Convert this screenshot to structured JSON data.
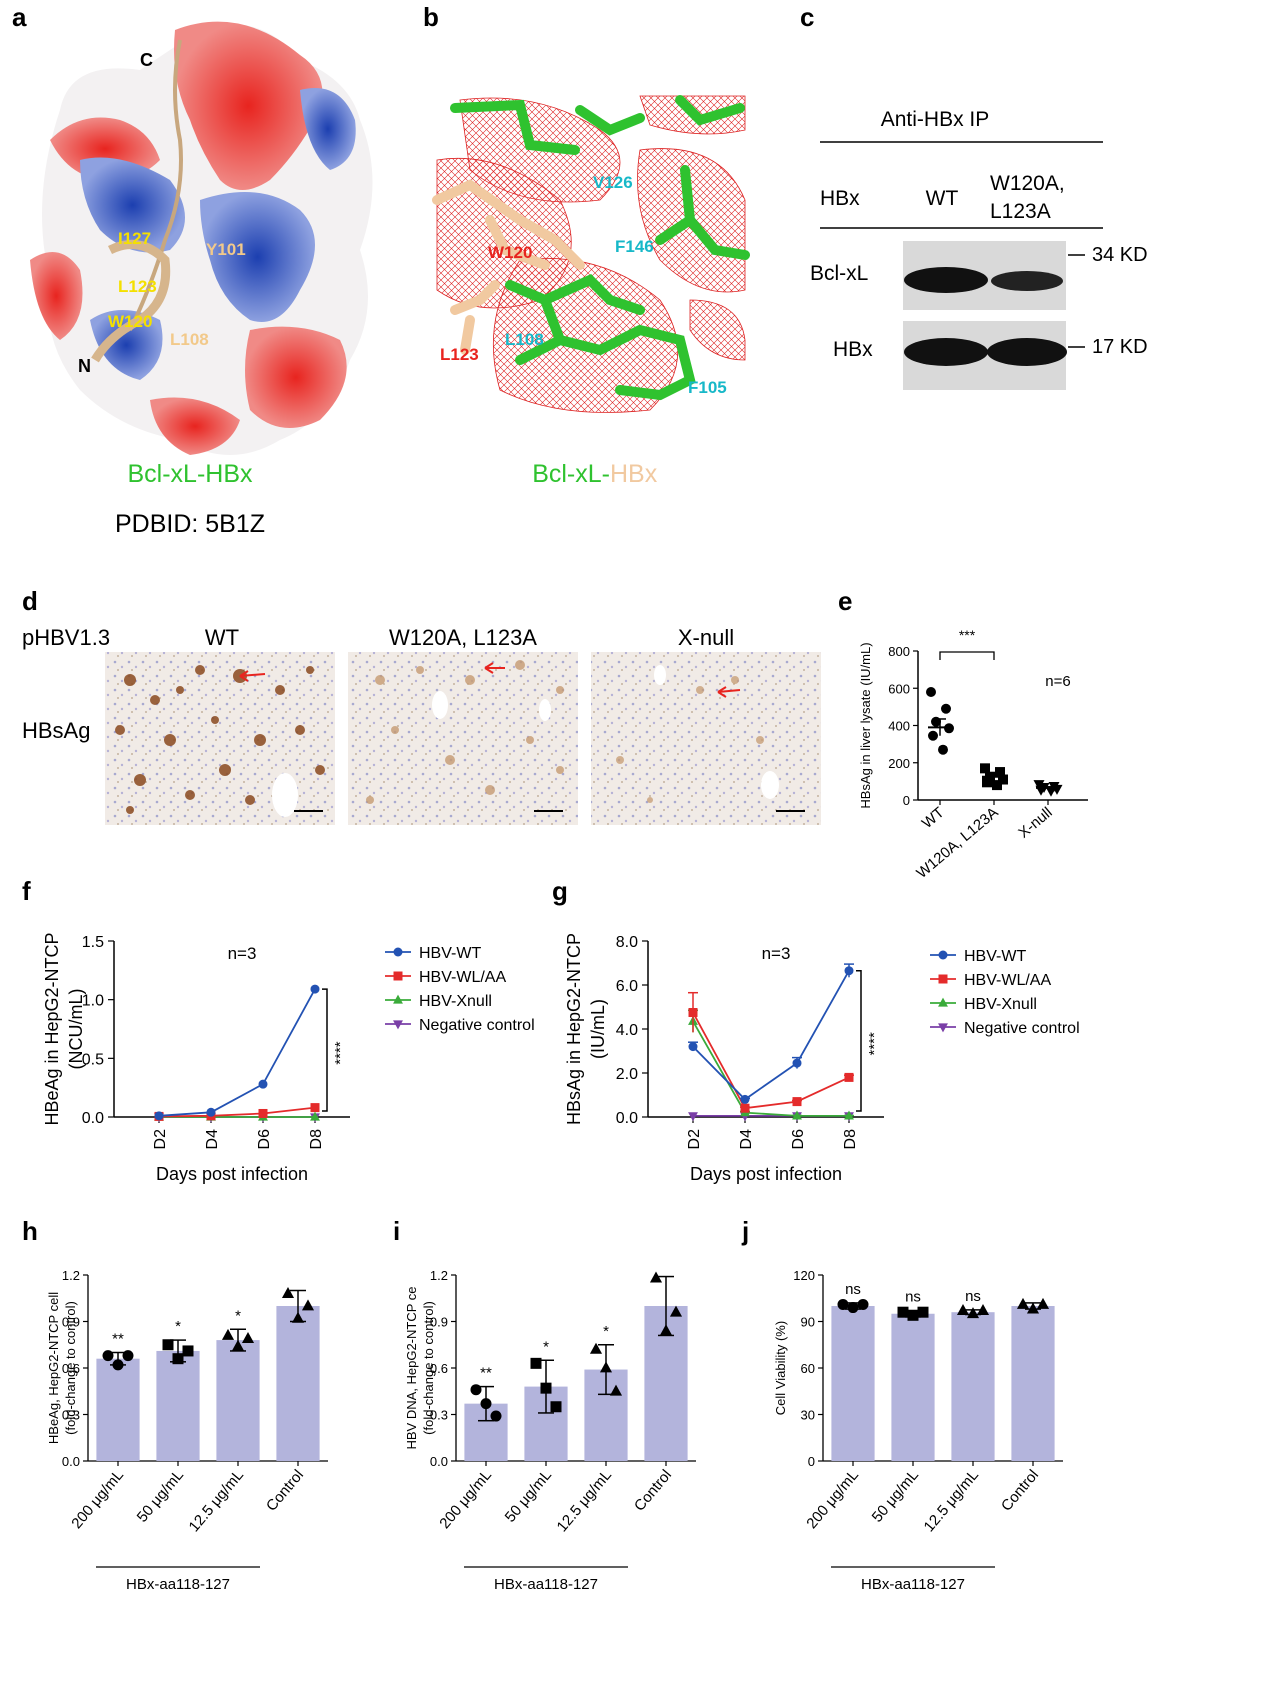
{
  "colors": {
    "green": "#2fc22f",
    "peach": "#f1c9a0",
    "red": "#e8241f",
    "blue": "#1f4fb5",
    "bar": "#b3b4dc",
    "wt": "#2352b3",
    "wlaa": "#e42b2b",
    "xnull": "#3aab3a",
    "neg": "#7a3fa7",
    "cyan": "#17b8c8",
    "yellow": "#f4e000"
  },
  "panel_a": {
    "letter": "a",
    "title_part1": "Bcl-xL-HBx",
    "pdb": "PDBID: 5B1Z",
    "labels": {
      "c_term": "C",
      "n_term": "N",
      "i127": "I127",
      "y101": "Y101",
      "l123": "L123",
      "w120": "W120",
      "l108": "L108"
    }
  },
  "panel_b": {
    "letter": "b",
    "title_part1": "Bcl-xL-",
    "title_part2": "HBx",
    "labels": {
      "v126": "V126",
      "w120": "W120",
      "f146": "F146",
      "l123": "L123",
      "l108": "L108",
      "f105": "F105"
    }
  },
  "panel_c": {
    "letter": "c",
    "header": "Anti-HBx IP",
    "row_hbx": "HBx",
    "col_wt": "WT",
    "col_mut_line1": "W120A,",
    "col_mut_line2": "L123A",
    "blot1": "Bcl-xL",
    "blot2": "HBx",
    "mw1": "34 KD",
    "mw2": "17 KD"
  },
  "panel_d": {
    "letter": "d",
    "row_label": "pHBV1.3",
    "stain": "HBsAg",
    "cols": [
      "WT",
      "W120A, L123A",
      "X-null"
    ]
  },
  "panel_f_title": "f",
  "panel_g_title": "g",
  "panel_h_title": "h",
  "panel_i_title": "i",
  "panel_j_title": "j",
  "panel_e_title": "e",
  "chart_data": [
    {
      "id": "e",
      "type": "scatter",
      "categories": [
        "WT",
        "W120A, L123A",
        "X-null"
      ],
      "ylabel": "HBsAg in liver lysate (IU/mL)",
      "ylim": [
        0,
        800
      ],
      "yticks": [
        0,
        200,
        400,
        600,
        800
      ],
      "annotation": "n=6",
      "significance": "***",
      "points": [
        [
          580,
          490,
          420,
          385,
          345,
          270
        ],
        [
          170,
          150,
          125,
          110,
          95,
          80
        ],
        [
          85,
          75,
          70,
          60,
          55,
          50
        ]
      ],
      "means": [
        390,
        125,
        65
      ],
      "sem": [
        45,
        15,
        6
      ]
    },
    {
      "id": "f",
      "type": "line",
      "x": [
        "D2",
        "D4",
        "D6",
        "D8"
      ],
      "xlabel": "Days post infection",
      "ylabel_line1": "HBeAg in HepG2-NTCP",
      "ylabel_line2": "(NCU/mL)",
      "ylim": [
        0,
        1.5
      ],
      "yticks": [
        "0.0",
        "0.5",
        "1.0",
        "1.5"
      ],
      "annotation": "n=3",
      "significance": "****",
      "series": [
        {
          "name": "HBV-WT",
          "values": [
            0.01,
            0.04,
            0.28,
            1.09
          ]
        },
        {
          "name": "HBV-WL/AA",
          "values": [
            0.005,
            0.01,
            0.03,
            0.08
          ]
        },
        {
          "name": "HBV-Xnull",
          "values": [
            0.0,
            0.0,
            0.0,
            0.0
          ]
        },
        {
          "name": "Negative control",
          "values": [
            0.0,
            0.0,
            0.0,
            0.0
          ]
        }
      ]
    },
    {
      "id": "g",
      "type": "line",
      "x": [
        "D2",
        "D4",
        "D6",
        "D8"
      ],
      "xlabel": "Days post infection",
      "ylabel_line1": "HBsAg in HepG2-NTCP",
      "ylabel_line2": "(IU/mL)",
      "ylim": [
        0,
        8
      ],
      "yticks": [
        "0.0",
        "2.0",
        "4.0",
        "6.0",
        "8.0"
      ],
      "annotation": "n=3",
      "significance": "****",
      "series": [
        {
          "name": "HBV-WT",
          "values": [
            3.2,
            0.8,
            2.45,
            6.65
          ],
          "err": [
            0.2,
            0.05,
            0.25,
            0.3
          ]
        },
        {
          "name": "HBV-WL/AA",
          "values": [
            4.75,
            0.4,
            0.7,
            1.8
          ],
          "err": [
            0.9,
            0.05,
            0.05,
            0.1
          ]
        },
        {
          "name": "HBV-Xnull",
          "values": [
            4.35,
            0.2,
            0.05,
            0.05
          ],
          "err": [
            0.5,
            0.05,
            0.02,
            0.02
          ]
        },
        {
          "name": "Negative control",
          "values": [
            0.05,
            0.05,
            0.05,
            0.05
          ],
          "err": [
            0,
            0,
            0,
            0
          ]
        }
      ]
    },
    {
      "id": "h",
      "type": "bar",
      "categories": [
        "200 μg/mL",
        "50 μg/mL",
        "12.5 μg/mL",
        "Control"
      ],
      "group_label": "HBx-aa118-127",
      "ylabel_line1": "HBeAg, HepG2-NTCP cell",
      "ylabel_line2": "(fold-change to control)",
      "ylim": [
        0,
        1.2
      ],
      "yticks": [
        "0.0",
        "0.3",
        "0.6",
        "0.9",
        "1.2"
      ],
      "values": [
        0.66,
        0.71,
        0.78,
        1.0
      ],
      "err": [
        0.04,
        0.07,
        0.07,
        0.1
      ],
      "points": [
        [
          0.68,
          0.62,
          0.68
        ],
        [
          0.75,
          0.66,
          0.71
        ],
        [
          0.81,
          0.74,
          0.79
        ],
        [
          1.08,
          0.92,
          1.0
        ]
      ],
      "markers": [
        "circle",
        "square",
        "triangle",
        "triangle"
      ],
      "sig": [
        "**",
        "*",
        "*",
        ""
      ]
    },
    {
      "id": "i",
      "type": "bar",
      "categories": [
        "200 μg/mL",
        "50 μg/mL",
        "12.5 μg/mL",
        "Control"
      ],
      "group_label": "HBx-aa118-127",
      "ylabel_line1": "HBV DNA, HepG2-NTCP ce",
      "ylabel_line2": "(fold-change to control)",
      "ylim": [
        0,
        1.2
      ],
      "yticks": [
        "0.0",
        "0.3",
        "0.6",
        "0.9",
        "1.2"
      ],
      "values": [
        0.37,
        0.48,
        0.59,
        1.0
      ],
      "err": [
        0.11,
        0.17,
        0.16,
        0.19
      ],
      "points": [
        [
          0.46,
          0.37,
          0.29
        ],
        [
          0.63,
          0.47,
          0.35
        ],
        [
          0.72,
          0.6,
          0.45
        ],
        [
          1.18,
          0.84,
          0.96
        ]
      ],
      "markers": [
        "circle",
        "square",
        "triangle",
        "triangle"
      ],
      "sig": [
        "**",
        "*",
        "*",
        ""
      ]
    },
    {
      "id": "j",
      "type": "bar",
      "categories": [
        "200 μg/mL",
        "50 μg/mL",
        "12.5 μg/mL",
        "Control"
      ],
      "group_label": "HBx-aa118-127",
      "ylabel_line1": "Cell Viability (%)",
      "ylabel_line2": "",
      "ylim": [
        0,
        120
      ],
      "yticks": [
        "0",
        "30",
        "60",
        "90",
        "120"
      ],
      "values": [
        100,
        95,
        96,
        100
      ],
      "err": [
        2,
        2,
        1.5,
        2
      ],
      "points": [
        [
          101,
          99,
          101
        ],
        [
          96,
          94,
          96
        ],
        [
          97,
          95,
          97
        ],
        [
          101,
          98,
          101
        ]
      ],
      "markers": [
        "circle",
        "square",
        "triangle",
        "triangle"
      ],
      "sig": [
        "ns",
        "ns",
        "ns",
        ""
      ]
    }
  ]
}
